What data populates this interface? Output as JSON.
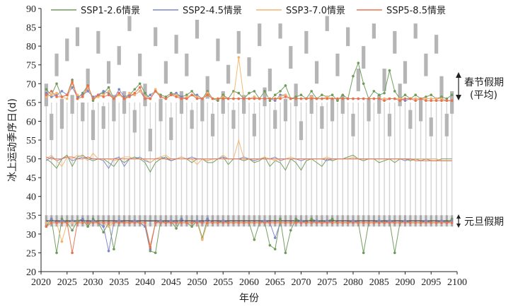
{
  "chart_data": {
    "type": "line",
    "xlabel": "年份",
    "ylabel": "冰上运动季序日(d)",
    "xlim": [
      2020,
      2100
    ],
    "ylim": [
      20,
      90
    ],
    "xticks": [
      2020,
      2025,
      2030,
      2035,
      2040,
      2045,
      2050,
      2055,
      2060,
      2065,
      2070,
      2075,
      2080,
      2085,
      2090,
      2095,
      2100
    ],
    "yticks": [
      20,
      25,
      30,
      35,
      40,
      45,
      50,
      55,
      60,
      65,
      70,
      75,
      80,
      85,
      90
    ],
    "legend_position": "top",
    "series": [
      {
        "name": "SSP1-2.6情景",
        "color": "#6e9a5a",
        "start": [
          68.5,
          67,
          70,
          66.5,
          67,
          71,
          66,
          67.5,
          69.5,
          65.5,
          67,
          67.5,
          69,
          66,
          67.5,
          66,
          67,
          68.5,
          70,
          67.5,
          66,
          68,
          67,
          66.5,
          67.5,
          67,
          66.5,
          67,
          68,
          66.5,
          66,
          68,
          66,
          65.5,
          67,
          66,
          68,
          67.5,
          66,
          67.5,
          68,
          66,
          68,
          65.5,
          67,
          68,
          69.5,
          66,
          66.5,
          67,
          66,
          68,
          66,
          67,
          66.5,
          67,
          65.5,
          67,
          66,
          72,
          75.5,
          70,
          66,
          68,
          67,
          67.5,
          73.5,
          68,
          66,
          67,
          66,
          67,
          66,
          66.5,
          67,
          66,
          66.5,
          66,
          67
        ],
        "mid": [
          50,
          49,
          47.5,
          50,
          51,
          48,
          50.5,
          51,
          50,
          49.5,
          50,
          50,
          49,
          48,
          50,
          49,
          50,
          50.5,
          50,
          49,
          46.5,
          49,
          50,
          50.5,
          49.5,
          50,
          50.5,
          50,
          49,
          50,
          50,
          49,
          49,
          50,
          50.5,
          48.5,
          50,
          50,
          49.5,
          50,
          49,
          49.5,
          50.5,
          48,
          49.5,
          49,
          47,
          50,
          49,
          47,
          49.5,
          50,
          49,
          48,
          50,
          49.5,
          50,
          50,
          50.5,
          51,
          50,
          49.5,
          50,
          50,
          49,
          49.5,
          50,
          49,
          50,
          50,
          49.5,
          50,
          49.5,
          50,
          49.5,
          49.5,
          50,
          50,
          50
        ],
        "end": [
          32,
          34,
          25,
          34,
          33,
          31,
          33.5,
          34,
          32,
          34,
          33,
          30.5,
          33,
          26,
          33.5,
          33,
          33,
          33.5,
          33,
          32,
          25.5,
          25,
          33.5,
          33,
          33.5,
          31.5,
          34,
          33,
          32,
          33.5,
          29,
          34,
          33,
          33,
          33.5,
          33,
          33,
          33,
          33,
          33,
          28.5,
          33,
          33,
          27,
          26,
          34,
          25,
          31,
          34,
          33.5,
          33,
          34,
          33.5,
          33,
          33.5,
          34,
          33,
          33,
          33,
          33.5,
          33,
          25,
          33,
          33,
          33.5,
          33,
          33.5,
          25,
          33,
          33.5,
          33,
          33,
          33,
          33.5,
          33,
          33,
          33.5,
          33,
          34
        ]
      },
      {
        "name": "SSP2-4.5情景",
        "color": "#7b86c8",
        "start": [
          67.5,
          66.5,
          67,
          68,
          67,
          69,
          66.5,
          67,
          68,
          66.5,
          67,
          68,
          67.5,
          66,
          68.5,
          66.5,
          67,
          67,
          68,
          66,
          67,
          68,
          66.5,
          66,
          67,
          67.5,
          66.5,
          66,
          67,
          67,
          66,
          67.5,
          66,
          66,
          66.5,
          66,
          66,
          66,
          66,
          66,
          66.5,
          66,
          66,
          66,
          65.5,
          67,
          67,
          66,
          66,
          66,
          66,
          66.5,
          66,
          66,
          66.5,
          66,
          66,
          66,
          66,
          66,
          66,
          66,
          66,
          66,
          66,
          66,
          66,
          66,
          66,
          65.5,
          66,
          66,
          66,
          66,
          66,
          66,
          66,
          65.5,
          65.5
        ],
        "mid": [
          49.5,
          50.5,
          49.5,
          50,
          50.5,
          49.5,
          50,
          50.5,
          50,
          50,
          50,
          49.5,
          47.5,
          50,
          50.5,
          48,
          50,
          50,
          50.5,
          49.5,
          49,
          50,
          50.5,
          50,
          49.5,
          50,
          50.5,
          50,
          50.5,
          50,
          50,
          49.5,
          50,
          50,
          50.5,
          50,
          50,
          50,
          50.5,
          50,
          49.5,
          50,
          50,
          50,
          50.5,
          49.5,
          50,
          50,
          50,
          49.5,
          50,
          50,
          50,
          50,
          49.5,
          50,
          50,
          50,
          50,
          50,
          50,
          50,
          50,
          50,
          50,
          50,
          50,
          50,
          50,
          49.5,
          50,
          50,
          50,
          50,
          50,
          50,
          49.5,
          49.5,
          49.5
        ],
        "end": [
          33,
          34,
          33,
          33.5,
          33,
          33.5,
          33,
          34,
          33,
          33.5,
          33,
          32,
          25.5,
          33,
          33.5,
          33,
          33,
          33.5,
          33,
          32,
          26,
          33,
          33.5,
          33,
          33.5,
          33,
          34,
          33,
          33,
          33.5,
          33,
          34,
          33,
          33,
          33.5,
          33,
          33,
          33,
          33,
          33,
          33,
          33,
          33.5,
          33,
          29,
          33,
          33,
          33,
          33,
          33.5,
          33,
          33,
          33.5,
          33,
          33.5,
          33,
          33,
          33,
          33,
          33.5,
          33,
          33,
          33,
          33,
          33.5,
          33,
          33.5,
          33,
          33,
          33.5,
          33,
          33,
          33,
          33.5,
          33,
          33,
          33.5,
          33,
          33.5
        ]
      },
      {
        "name": "SSP3-7.0情景",
        "color": "#f5b46e",
        "start": [
          66.5,
          67,
          67.5,
          66.5,
          66,
          70,
          67,
          66.5,
          69,
          66,
          66.5,
          67,
          68,
          66,
          67,
          66,
          67.5,
          67,
          68,
          66.5,
          66,
          68.5,
          66.5,
          66,
          67,
          67,
          66,
          66.5,
          67,
          66.5,
          66,
          67.5,
          66,
          66,
          66.5,
          66,
          66,
          77,
          66,
          66,
          66.5,
          66,
          66,
          66,
          66,
          66.5,
          67,
          66,
          66,
          66,
          66,
          66.5,
          66,
          66,
          66.5,
          66,
          66,
          66,
          66,
          66,
          66,
          66,
          66,
          66,
          66,
          66,
          66,
          66,
          66,
          66,
          66,
          66,
          66,
          66,
          66,
          66,
          66,
          65.5,
          65.5
        ],
        "mid": [
          50,
          51,
          49.5,
          48,
          50.5,
          50,
          51,
          50.5,
          49.5,
          51.5,
          50,
          50,
          50,
          49.5,
          50,
          50.5,
          50.5,
          50,
          50,
          50,
          49,
          50,
          50.5,
          51,
          50,
          50,
          50.5,
          50,
          50,
          48.5,
          50,
          49.5,
          50,
          50,
          51,
          50,
          50,
          55,
          50,
          50,
          50,
          50,
          50.5,
          50,
          49.5,
          50,
          50,
          50.5,
          50,
          50,
          50,
          50,
          50,
          50,
          50.5,
          50,
          50,
          50,
          50,
          50.5,
          50,
          50,
          50,
          50,
          50,
          50,
          50,
          50,
          50,
          50,
          50,
          50,
          50,
          50,
          50,
          50,
          49.5,
          49.5,
          49.5
        ],
        "end": [
          33,
          33,
          33,
          28,
          33,
          33,
          33,
          33,
          33,
          33,
          33,
          33,
          32,
          33,
          33,
          33,
          33,
          33,
          33,
          33,
          27,
          33,
          33,
          33,
          33,
          33,
          33,
          33,
          33,
          33,
          28.5,
          33,
          33,
          33,
          33,
          33,
          33,
          33,
          33,
          33,
          33,
          33,
          33,
          33,
          33,
          33,
          33,
          33,
          33,
          33,
          33,
          33,
          33,
          33,
          33,
          33,
          33,
          33,
          33,
          33,
          33,
          33,
          33,
          33,
          33,
          33,
          33,
          33,
          33,
          33,
          33,
          33,
          33,
          33,
          33,
          33,
          33,
          33,
          33
        ]
      },
      {
        "name": "SSP5-8.5情景",
        "color": "#e8724f",
        "start": [
          67,
          68,
          66.5,
          66.5,
          67,
          70.5,
          66,
          66.5,
          69.5,
          66,
          67,
          66.5,
          67,
          66,
          67.5,
          66,
          66.5,
          67.5,
          69,
          66,
          66,
          68,
          66.5,
          66,
          67,
          66.5,
          66,
          66,
          67,
          66,
          66,
          67,
          66,
          66,
          66,
          66,
          66,
          66,
          66,
          66,
          66,
          66,
          66,
          66,
          66,
          66,
          66.5,
          66,
          66,
          66,
          66,
          66,
          66,
          66,
          66,
          66,
          66,
          66,
          66,
          66,
          66,
          66,
          66,
          66,
          66,
          65.5,
          66,
          66,
          65.5,
          66,
          66,
          65.5,
          66,
          65.5,
          65.5,
          65.5,
          65.5,
          65.5,
          65.5
        ],
        "mid": [
          50.5,
          50,
          50,
          50,
          50.5,
          50.5,
          50,
          50,
          50.5,
          50,
          50,
          50,
          50,
          50,
          50,
          50,
          50,
          50,
          50,
          50,
          50,
          50,
          50,
          50,
          50,
          50,
          50,
          50,
          50,
          50,
          50,
          50,
          50,
          50,
          50,
          50,
          50,
          50,
          50,
          50,
          50,
          50,
          50,
          50,
          50,
          50,
          50,
          50,
          50,
          50,
          50,
          50,
          50,
          50,
          50,
          50,
          50,
          50,
          50,
          50,
          50,
          50,
          50,
          50,
          50,
          50,
          50,
          50,
          50,
          50,
          50,
          49.5,
          49.5,
          49.5,
          49.5,
          49.5,
          49.5,
          49.5,
          49.5
        ],
        "end": [
          32,
          33,
          33,
          33,
          33,
          25,
          33,
          33,
          33,
          33,
          33,
          33,
          33,
          33,
          33,
          33,
          33,
          33,
          33,
          33,
          26.5,
          33,
          33,
          33,
          33,
          33,
          33,
          33,
          33,
          33,
          33,
          33,
          33,
          33,
          33,
          33,
          33,
          33,
          33,
          33,
          33,
          33,
          33,
          33,
          33,
          33,
          33,
          33,
          33,
          33,
          33,
          33,
          33,
          33,
          33,
          33,
          33,
          33,
          33,
          33,
          33,
          33,
          33,
          33,
          33,
          33,
          33,
          33,
          33,
          33,
          33,
          33,
          33,
          33,
          33,
          33,
          33,
          33,
          33
        ]
      }
    ],
    "spring_festival_bars": [
      [
        64,
        70
      ],
      [
        55,
        62
      ],
      [
        72,
        78
      ],
      [
        58,
        66
      ],
      [
        76,
        82
      ],
      [
        62,
        67
      ],
      [
        80,
        85
      ],
      [
        60,
        65
      ],
      [
        68,
        74
      ],
      [
        55,
        63
      ],
      [
        78,
        84
      ],
      [
        58,
        64
      ],
      [
        70,
        76
      ],
      [
        60,
        67
      ],
      [
        75,
        80
      ],
      [
        62,
        68
      ],
      [
        84,
        88
      ],
      [
        57,
        63
      ],
      [
        72,
        78
      ],
      [
        64,
        70
      ],
      [
        52,
        58
      ],
      [
        80,
        85
      ],
      [
        60,
        66
      ],
      [
        70,
        76
      ],
      [
        55,
        61
      ],
      [
        78,
        83
      ],
      [
        62,
        68
      ],
      [
        72,
        78
      ],
      [
        58,
        63
      ],
      [
        82,
        87
      ],
      [
        60,
        66
      ],
      [
        66,
        72
      ],
      [
        56,
        62
      ],
      [
        76,
        82
      ],
      [
        62,
        68
      ],
      [
        70,
        75
      ],
      [
        58,
        63
      ],
      [
        78,
        84
      ],
      [
        62,
        67
      ],
      [
        72,
        77
      ],
      [
        56,
        62
      ],
      [
        80,
        86
      ],
      [
        64,
        69
      ],
      [
        68,
        74
      ],
      [
        58,
        63
      ],
      [
        82,
        86
      ],
      [
        60,
        66
      ],
      [
        74,
        80
      ],
      [
        64,
        70
      ],
      [
        55,
        60
      ],
      [
        78,
        84
      ],
      [
        62,
        67
      ],
      [
        70,
        76
      ],
      [
        58,
        64
      ],
      [
        84,
        88
      ],
      [
        60,
        66
      ],
      [
        72,
        78
      ],
      [
        62,
        67
      ],
      [
        80,
        85
      ],
      [
        56,
        62
      ],
      [
        68,
        74
      ],
      [
        74,
        80
      ],
      [
        60,
        66
      ],
      [
        82,
        86
      ],
      [
        62,
        67
      ],
      [
        68,
        74
      ],
      [
        56,
        62
      ],
      [
        78,
        84
      ],
      [
        64,
        70
      ],
      [
        70,
        76
      ],
      [
        58,
        63
      ],
      [
        82,
        86
      ],
      [
        60,
        66
      ],
      [
        72,
        78
      ],
      [
        56,
        61
      ],
      [
        78,
        83
      ],
      [
        66,
        72
      ],
      [
        56,
        62
      ],
      [
        62,
        68
      ]
    ],
    "new_year_band": [
      32,
      35
    ],
    "labels": {
      "spring_festival": "春节假期",
      "spring_festival_sub": "(平均)",
      "new_year": "元旦假期"
    }
  }
}
